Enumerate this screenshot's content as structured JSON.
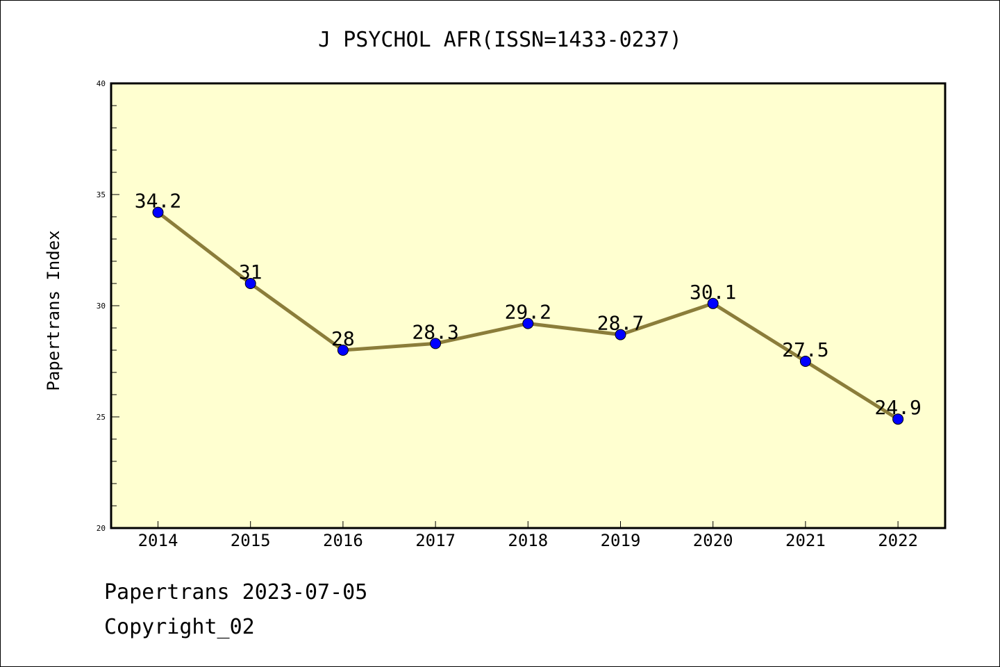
{
  "chart_data": {
    "type": "line",
    "title": "J PSYCHOL AFR(ISSN=1433-0237)",
    "ylabel": "Papertrans Index",
    "xlabel": "",
    "categories": [
      "2014",
      "2015",
      "2016",
      "2017",
      "2018",
      "2019",
      "2020",
      "2021",
      "2022"
    ],
    "values": [
      34.2,
      31,
      28,
      28.3,
      29.2,
      28.7,
      30.1,
      27.5,
      24.9
    ],
    "value_labels": [
      "34.2",
      "31",
      "28",
      "28.3",
      "29.2",
      "28.7",
      "30.1",
      "27.5",
      "24.9"
    ],
    "ylim": [
      20,
      40
    ],
    "yticks": [
      20,
      25,
      30,
      35,
      40
    ],
    "grid": false,
    "legend": "none",
    "colors": {
      "plot_bg": "#ffffd0",
      "line": "#8b7d3a",
      "marker": "#0000ff"
    }
  },
  "footer": {
    "line1": "Papertrans 2023-07-05",
    "line2": "Copyright_02"
  }
}
